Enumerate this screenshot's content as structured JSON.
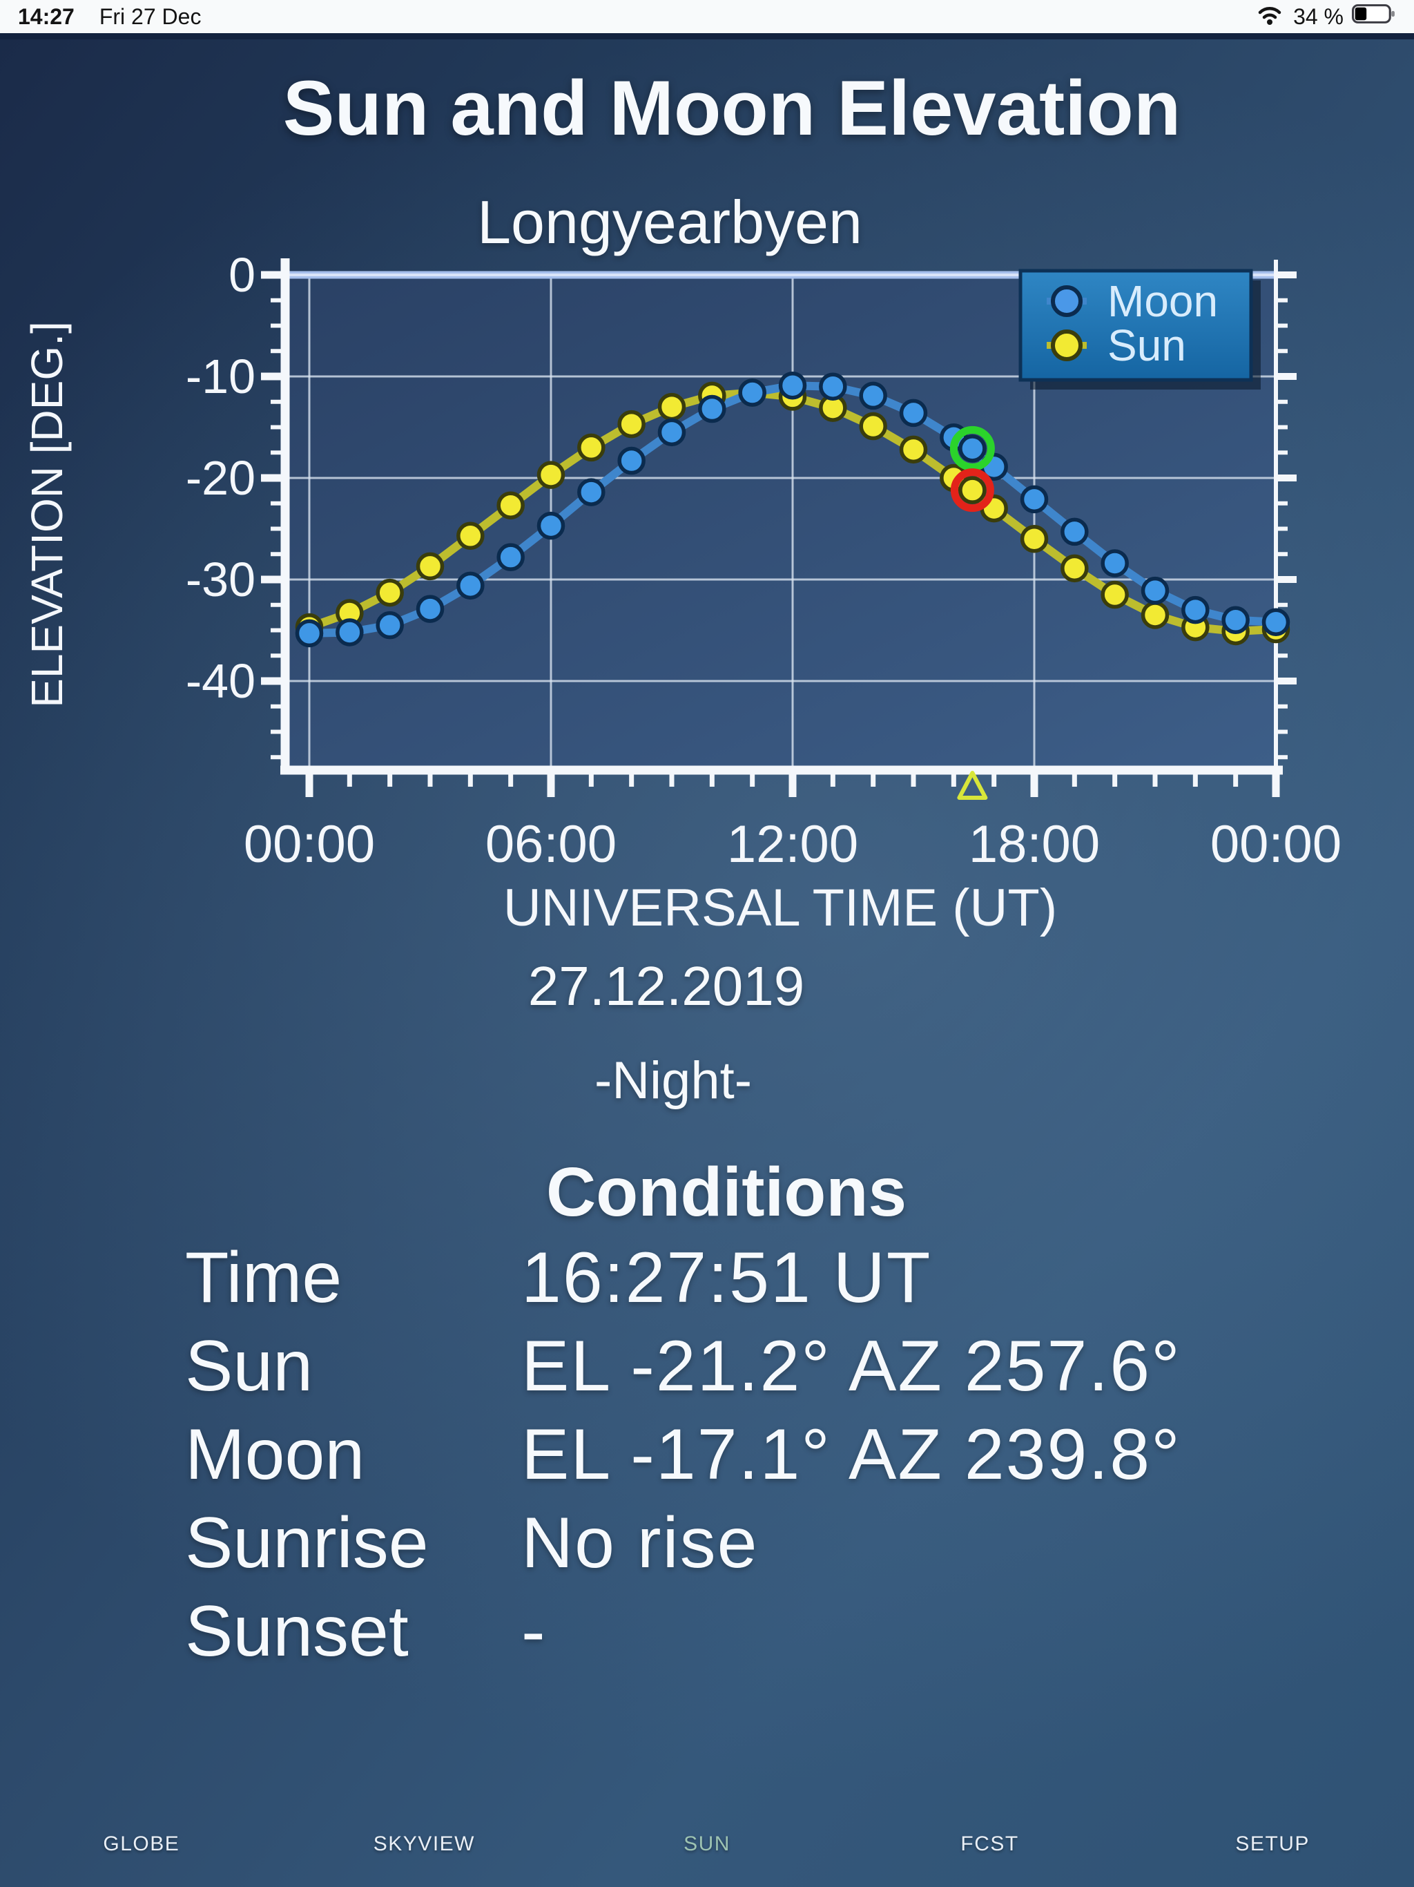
{
  "status_bar": {
    "time": "14:27",
    "date": "Fri 27 Dec",
    "battery_label": "34 %",
    "battery_level": 34
  },
  "header": {
    "title": "Sun and Moon Elevation",
    "location": "Longyearbyen"
  },
  "chart_data": {
    "type": "line",
    "title": "Longyearbyen",
    "xlabel": "UNIVERSAL TIME (UT)",
    "ylabel": "ELEVATION [DEG.]",
    "xlim": [
      0,
      24
    ],
    "ylim": [
      -48.5,
      0
    ],
    "grid": true,
    "x_ticks": [
      0,
      6,
      12,
      18,
      24
    ],
    "x_tick_labels": [
      "00:00",
      "06:00",
      "12:00",
      "18:00",
      "00:00"
    ],
    "x_minor_step_hours": 1,
    "y_ticks": [
      0,
      -10,
      -20,
      -30,
      -40
    ],
    "y_tick_labels": [
      "0",
      "-10",
      "-20",
      "-30",
      "-40"
    ],
    "y_minor_step_deg": 2.5,
    "zero_line_color": "#a6bfec",
    "legend": {
      "position": "top-right",
      "entries": [
        {
          "label": "Moon",
          "color": "#4a98e8"
        },
        {
          "label": "Sun",
          "color": "#f2ea33"
        }
      ]
    },
    "x_hours": [
      0,
      1,
      2,
      3,
      4,
      5,
      6,
      7,
      8,
      9,
      10,
      11,
      12,
      13,
      14,
      15,
      16,
      17,
      18,
      19,
      20,
      21,
      22,
      23,
      24
    ],
    "series": [
      {
        "name": "Moon",
        "line_color": "#3f86cc",
        "fill_color": "#3f97e6",
        "edge_color": "#0b2b4e",
        "values": [
          -35.3,
          -35.2,
          -34.5,
          -32.9,
          -30.6,
          -27.8,
          -24.7,
          -21.4,
          -18.3,
          -15.5,
          -13.2,
          -11.6,
          -10.9,
          -11.0,
          -11.9,
          -13.6,
          -16.0,
          -18.9,
          -22.1,
          -25.3,
          -28.4,
          -31.1,
          -33.0,
          -34.0,
          -34.2
        ]
      },
      {
        "name": "Sun",
        "line_color": "#bdbd2e",
        "fill_color": "#f2ea33",
        "edge_color": "#3a3d0c",
        "values": [
          -34.7,
          -33.3,
          -31.3,
          -28.7,
          -25.7,
          -22.7,
          -19.7,
          -17.0,
          -14.7,
          -13.0,
          -11.9,
          -11.6,
          -12.0,
          -13.1,
          -14.9,
          -17.2,
          -20.0,
          -23.0,
          -26.0,
          -28.9,
          -31.5,
          -33.5,
          -34.7,
          -35.1,
          -34.9
        ]
      }
    ],
    "markers": {
      "current_time_hours": 16.464,
      "moon_marker": {
        "elevation": -17.1,
        "ring_color": "#2bd32b"
      },
      "sun_marker": {
        "elevation": -21.2,
        "ring_color": "#e3231a"
      },
      "time_pointer": {
        "x_hours": 16.464,
        "color": "#d8e63a"
      }
    }
  },
  "below_chart": {
    "date": "27.12.2019",
    "night_label": "-Night-"
  },
  "conditions": {
    "heading": "Conditions",
    "rows": [
      {
        "label": "Time",
        "value": "16:27:51 UT"
      },
      {
        "label": "Sun",
        "value": "EL -21.2° AZ 257.6°"
      },
      {
        "label": "Moon",
        "value": "EL -17.1° AZ 239.8°"
      },
      {
        "label": "Sunrise",
        "value": "No rise"
      },
      {
        "label": "Sunset",
        "value": "-"
      }
    ]
  },
  "tab_bar": {
    "active_color": "#9dc3b2",
    "inactive_color": "#e9eff6",
    "items": [
      {
        "label": "GLOBE",
        "active": false
      },
      {
        "label": "SKYVIEW",
        "active": false
      },
      {
        "label": "SUN",
        "active": true
      },
      {
        "label": "FCST",
        "active": false
      },
      {
        "label": "SETUP",
        "active": false
      }
    ]
  }
}
